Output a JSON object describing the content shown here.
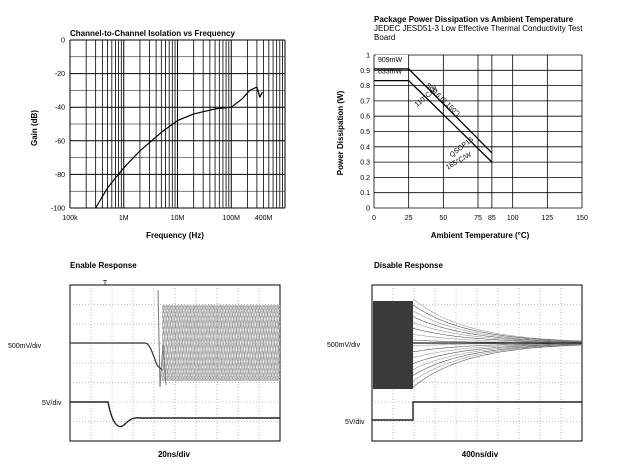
{
  "chart_data": [
    {
      "type": "line",
      "title": "Channel-to-Channel Isolation vs Frequency",
      "xlabel": "Frequency (Hz)",
      "ylabel": "Gain (dB)",
      "xscale": "log",
      "xlim": [
        100000,
        1000000000
      ],
      "ylim": [
        -100,
        0
      ],
      "grid": true,
      "x_tick_labels": [
        "100k",
        "1M",
        "10M",
        "100M",
        "400M"
      ],
      "y_tick_labels": [
        "0",
        "-20",
        "-40",
        "-60",
        "-80",
        "-100"
      ],
      "series": [
        {
          "x": [
            300000,
            500000,
            1000000,
            2000000,
            5000000,
            10000000,
            20000000,
            50000000,
            100000000,
            160000000,
            220000000,
            300000000,
            340000000,
            380000000
          ],
          "y": [
            -100,
            -88,
            -76,
            -66,
            -55,
            -48,
            -44,
            -41,
            -40,
            -35,
            -30,
            -28,
            -34,
            -31
          ]
        }
      ]
    },
    {
      "type": "line",
      "title": "Package Power Dissipation vs Ambient Temperature",
      "subtitle": "JEDEC JESD51-3 Low Effective Thermal Conductivity Test Board",
      "xlabel": "Ambient Temperature (°C)",
      "ylabel": "Power Dissipation (W)",
      "xlim": [
        0,
        150
      ],
      "ylim": [
        0,
        1.0
      ],
      "grid": true,
      "x_tick_labels": [
        "0",
        "25",
        "50",
        "75",
        "85",
        "100",
        "125",
        "150"
      ],
      "y_tick_labels": [
        "1",
        "0.9",
        "0.8",
        "0.7",
        "0.6",
        "0.5",
        "0.4",
        "0.3",
        "0.2",
        "0.1",
        "0"
      ],
      "annotations": [
        "909mW",
        "833mW",
        "SO16 (0.150\")",
        "110°C/W",
        "QSOP16",
        "165°C/W"
      ],
      "series": [
        {
          "name": "SO16 (0.150\")",
          "x": [
            0,
            25,
            85
          ],
          "y": [
            0.909,
            0.909,
            0.36
          ]
        },
        {
          "name": "QSOP16",
          "x": [
            0,
            25,
            85
          ],
          "y": [
            0.833,
            0.833,
            0.3
          ]
        }
      ]
    },
    {
      "type": "line",
      "title": "Enable Response",
      "ylabels": [
        "500mV/div",
        "5V/div"
      ],
      "xlabel": "20ns/div"
    },
    {
      "type": "line",
      "title": "Disable Response",
      "ylabels": [
        "500mV/div",
        "5V/div"
      ],
      "xlabel": "400ns/div"
    }
  ]
}
